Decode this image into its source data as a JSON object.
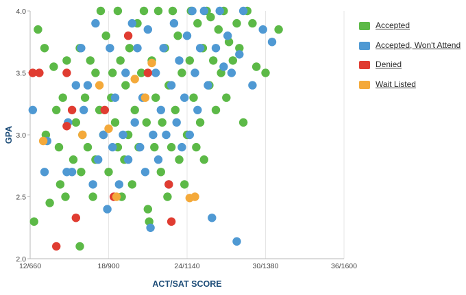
{
  "chart_data": {
    "type": "scatter",
    "xlabel": "ACT/SAT SCORE",
    "ylabel": "GPA",
    "x_tick_values": [
      12,
      18,
      24,
      30,
      36
    ],
    "x_tick_labels": [
      "12/660",
      "18/900",
      "24/1140",
      "30/1380",
      "36/1600"
    ],
    "y_tick_values": [
      2.0,
      2.5,
      3.0,
      3.5,
      4.0
    ],
    "y_tick_labels": [
      "2.0",
      "2.5",
      "3.0",
      "3.5",
      "4.0"
    ],
    "xlim": [
      12,
      36
    ],
    "ylim": [
      2.0,
      4.0
    ],
    "grid": "vertical lines at x ticks",
    "legend_position": "right",
    "series": [
      {
        "name": "Accepted",
        "color": "#5cb947",
        "points": [
          [
            12.3,
            2.3
          ],
          [
            12.6,
            3.85
          ],
          [
            13.1,
            3.7
          ],
          [
            13.2,
            3.0
          ],
          [
            13.5,
            2.45
          ],
          [
            13.8,
            3.55
          ],
          [
            14.0,
            3.2
          ],
          [
            14.2,
            2.9
          ],
          [
            14.3,
            2.6
          ],
          [
            14.7,
            2.5
          ],
          [
            14.5,
            3.3
          ],
          [
            14.8,
            3.6
          ],
          [
            15.3,
            2.8
          ],
          [
            15.5,
            3.1
          ],
          [
            15.8,
            2.1
          ],
          [
            15.9,
            2.7
          ],
          [
            15.8,
            3.7
          ],
          [
            16.0,
            3.0
          ],
          [
            16.2,
            3.3
          ],
          [
            16.4,
            2.9
          ],
          [
            16.6,
            3.6
          ],
          [
            16.8,
            2.5
          ],
          [
            17.0,
            2.8
          ],
          [
            17.0,
            3.5
          ],
          [
            17.3,
            3.2
          ],
          [
            17.4,
            4.0
          ],
          [
            17.6,
            3.0
          ],
          [
            17.8,
            3.8
          ],
          [
            18.0,
            2.7
          ],
          [
            18.2,
            3.3
          ],
          [
            18.3,
            3.5
          ],
          [
            18.5,
            3.1
          ],
          [
            18.7,
            2.9
          ],
          [
            18.7,
            4.0
          ],
          [
            18.9,
            3.6
          ],
          [
            19.0,
            2.5
          ],
          [
            19.2,
            2.8
          ],
          [
            19.3,
            3.4
          ],
          [
            19.5,
            3.0
          ],
          [
            19.6,
            3.7
          ],
          [
            19.8,
            2.6
          ],
          [
            20.0,
            3.2
          ],
          [
            20.2,
            3.9
          ],
          [
            20.3,
            2.9
          ],
          [
            20.5,
            3.5
          ],
          [
            20.7,
            4.0
          ],
          [
            20.9,
            3.1
          ],
          [
            21.0,
            2.4
          ],
          [
            21.1,
            2.3
          ],
          [
            21.3,
            3.6
          ],
          [
            21.5,
            2.9
          ],
          [
            21.6,
            3.3
          ],
          [
            21.8,
            4.0
          ],
          [
            22.0,
            2.7
          ],
          [
            22.1,
            3.1
          ],
          [
            22.3,
            3.7
          ],
          [
            22.5,
            2.5
          ],
          [
            22.6,
            3.4
          ],
          [
            22.8,
            2.9
          ],
          [
            22.9,
            4.0
          ],
          [
            23.1,
            3.2
          ],
          [
            23.3,
            3.8
          ],
          [
            23.4,
            2.8
          ],
          [
            23.6,
            3.5
          ],
          [
            23.8,
            2.6
          ],
          [
            24.0,
            3.0
          ],
          [
            24.2,
            3.6
          ],
          [
            24.3,
            4.0
          ],
          [
            24.5,
            3.3
          ],
          [
            24.7,
            2.9
          ],
          [
            24.8,
            3.9
          ],
          [
            25.0,
            3.1
          ],
          [
            25.2,
            3.7
          ],
          [
            25.3,
            2.8
          ],
          [
            25.5,
            4.0
          ],
          [
            25.7,
            3.4
          ],
          [
            25.8,
            3.95
          ],
          [
            26.0,
            3.6
          ],
          [
            26.2,
            3.2
          ],
          [
            26.4,
            3.85
          ],
          [
            26.6,
            3.5
          ],
          [
            26.8,
            4.0
          ],
          [
            27.0,
            3.3
          ],
          [
            27.2,
            3.75
          ],
          [
            27.5,
            3.6
          ],
          [
            27.8,
            3.9
          ],
          [
            28.0,
            3.7
          ],
          [
            28.3,
            3.1
          ],
          [
            28.6,
            4.0
          ],
          [
            29.0,
            3.9
          ],
          [
            29.3,
            3.55
          ],
          [
            30.0,
            3.5
          ],
          [
            31.0,
            3.85
          ]
        ]
      },
      {
        "name": "Accepted, Won't Attend",
        "color": "#4f99d3",
        "points": [
          [
            12.2,
            3.2
          ],
          [
            13.3,
            2.95
          ],
          [
            13.1,
            2.7
          ],
          [
            14.8,
            2.7
          ],
          [
            14.9,
            3.1
          ],
          [
            15.2,
            2.7
          ],
          [
            15.5,
            3.4
          ],
          [
            15.9,
            3.7
          ],
          [
            16.1,
            3.2
          ],
          [
            16.4,
            3.4
          ],
          [
            16.8,
            2.6
          ],
          [
            17.0,
            3.9
          ],
          [
            17.2,
            2.8
          ],
          [
            17.6,
            3.0
          ],
          [
            17.9,
            2.4
          ],
          [
            18.1,
            3.7
          ],
          [
            18.3,
            2.9
          ],
          [
            18.5,
            3.3
          ],
          [
            18.8,
            2.6
          ],
          [
            19.1,
            3.0
          ],
          [
            19.3,
            3.5
          ],
          [
            19.5,
            2.8
          ],
          [
            19.8,
            3.9
          ],
          [
            20.0,
            3.1
          ],
          [
            20.2,
            3.7
          ],
          [
            20.4,
            2.9
          ],
          [
            20.6,
            3.3
          ],
          [
            20.8,
            2.7
          ],
          [
            21.0,
            3.85
          ],
          [
            21.2,
            2.25
          ],
          [
            21.4,
            3.0
          ],
          [
            21.6,
            3.5
          ],
          [
            21.8,
            2.8
          ],
          [
            22.0,
            3.2
          ],
          [
            22.2,
            3.7
          ],
          [
            22.4,
            3.0
          ],
          [
            22.6,
            2.6
          ],
          [
            22.8,
            3.4
          ],
          [
            23.0,
            3.9
          ],
          [
            23.2,
            3.1
          ],
          [
            23.4,
            3.6
          ],
          [
            23.6,
            2.9
          ],
          [
            23.8,
            3.3
          ],
          [
            24.0,
            3.8
          ],
          [
            24.2,
            3.0
          ],
          [
            24.4,
            4.0
          ],
          [
            24.6,
            3.5
          ],
          [
            24.8,
            3.2
          ],
          [
            25.0,
            3.7
          ],
          [
            25.3,
            4.0
          ],
          [
            25.6,
            3.4
          ],
          [
            25.9,
            2.33
          ],
          [
            26.2,
            3.7
          ],
          [
            26.5,
            4.0
          ],
          [
            26.8,
            3.55
          ],
          [
            27.1,
            3.8
          ],
          [
            27.4,
            3.5
          ],
          [
            27.8,
            2.14
          ],
          [
            28.0,
            3.65
          ],
          [
            28.3,
            4.0
          ],
          [
            29.0,
            3.4
          ],
          [
            29.8,
            3.85
          ],
          [
            30.5,
            3.75
          ]
        ]
      },
      {
        "name": "Denied",
        "color": "#e03c31",
        "points": [
          [
            12.2,
            3.5
          ],
          [
            12.7,
            3.5
          ],
          [
            14.0,
            2.1
          ],
          [
            14.8,
            3.5
          ],
          [
            14.8,
            3.07
          ],
          [
            15.2,
            3.2
          ],
          [
            15.5,
            2.33
          ],
          [
            17.7,
            3.2
          ],
          [
            18.4,
            2.5
          ],
          [
            21.0,
            3.5
          ],
          [
            22.6,
            2.6
          ],
          [
            22.8,
            2.3
          ],
          [
            19.5,
            3.8
          ]
        ]
      },
      {
        "name": "Wait Listed",
        "color": "#f4a93a",
        "points": [
          [
            13.0,
            2.95
          ],
          [
            16.0,
            3.0
          ],
          [
            17.3,
            3.4
          ],
          [
            18.0,
            3.05
          ],
          [
            18.6,
            2.5
          ],
          [
            20.8,
            3.3
          ],
          [
            21.3,
            3.58
          ],
          [
            24.2,
            2.49
          ],
          [
            24.6,
            2.5
          ],
          [
            20.0,
            3.45
          ]
        ]
      }
    ]
  }
}
